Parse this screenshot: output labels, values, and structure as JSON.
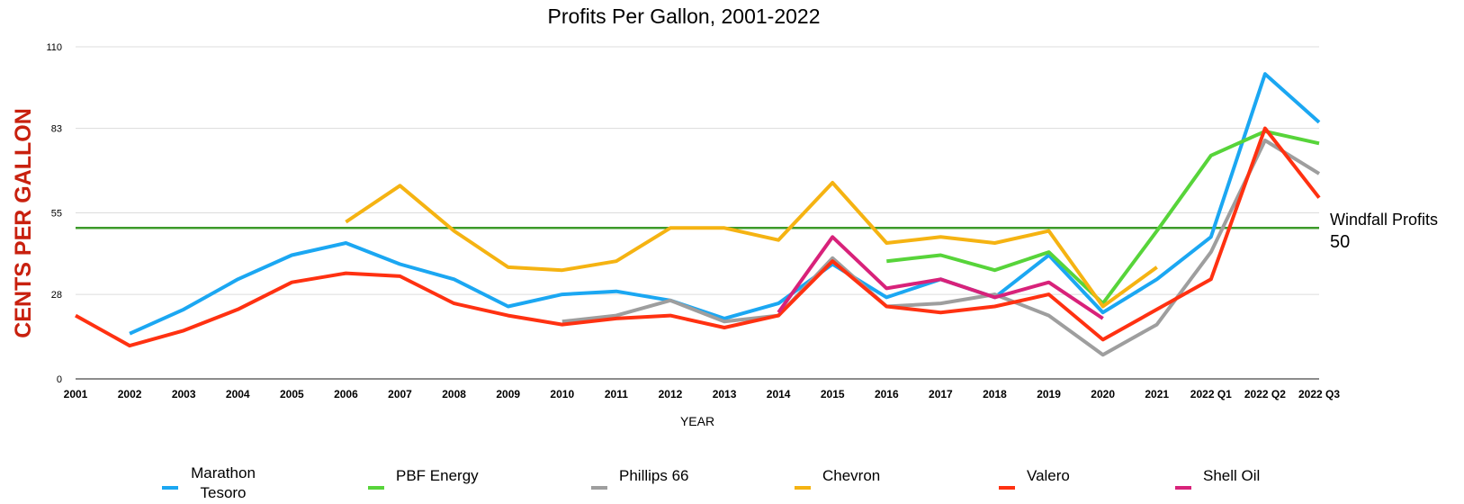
{
  "chart_data": {
    "type": "line",
    "title": "Profits Per Gallon, 2001-2022",
    "xlabel": "YEAR",
    "ylabel": "CENTS PER GALLON",
    "ylim": [
      0,
      110
    ],
    "yticks": [
      0,
      28,
      55,
      83,
      110
    ],
    "grid": true,
    "legend_position": "bottom",
    "categories": [
      "2001",
      "2002",
      "2003",
      "2004",
      "2005",
      "2006",
      "2007",
      "2008",
      "2009",
      "2010",
      "2011",
      "2012",
      "2013",
      "2014",
      "2015",
      "2016",
      "2017",
      "2018",
      "2019",
      "2020",
      "2021",
      "2022 Q1",
      "2022 Q2",
      "2022 Q3"
    ],
    "series": [
      {
        "name": "Marathon Tesoro",
        "legend_lines": [
          "Marathon",
          "Tesoro"
        ],
        "color": "#1ba7f2",
        "values": [
          null,
          15,
          23,
          33,
          41,
          45,
          38,
          33,
          24,
          28,
          29,
          26,
          20,
          25,
          38,
          27,
          33,
          27,
          41,
          22,
          33,
          47,
          101,
          85
        ]
      },
      {
        "name": "PBF Energy",
        "color": "#57d43a",
        "values": [
          null,
          null,
          null,
          null,
          null,
          null,
          null,
          null,
          null,
          null,
          null,
          null,
          null,
          null,
          null,
          39,
          41,
          36,
          42,
          25,
          49,
          74,
          82,
          78
        ]
      },
      {
        "name": "Phillips 66",
        "color": "#9e9e9e",
        "values": [
          null,
          null,
          null,
          null,
          null,
          null,
          null,
          null,
          null,
          19,
          21,
          26,
          19,
          21,
          40,
          24,
          25,
          28,
          21,
          8,
          18,
          42,
          79,
          68
        ]
      },
      {
        "name": "Chevron",
        "color": "#f5b312",
        "values": [
          null,
          null,
          null,
          null,
          null,
          52,
          64,
          49,
          37,
          36,
          39,
          50,
          50,
          46,
          65,
          45,
          47,
          45,
          49,
          24,
          37,
          null,
          null,
          null
        ]
      },
      {
        "name": "Valero",
        "color": "#ff3111",
        "values": [
          21,
          11,
          16,
          23,
          32,
          35,
          34,
          25,
          21,
          18,
          20,
          21,
          17,
          21,
          39,
          24,
          22,
          24,
          28,
          13,
          23,
          33,
          83,
          60
        ]
      },
      {
        "name": "Shell Oil",
        "color": "#d8227a",
        "values": [
          null,
          null,
          null,
          null,
          null,
          null,
          null,
          null,
          null,
          null,
          null,
          null,
          null,
          22,
          47,
          30,
          33,
          27,
          32,
          20,
          null,
          null,
          null,
          null
        ]
      }
    ],
    "reference_line": {
      "value": 50,
      "color": "#3c9a2a",
      "label_lines": [
        "Windfall Profits",
        "50"
      ]
    }
  }
}
